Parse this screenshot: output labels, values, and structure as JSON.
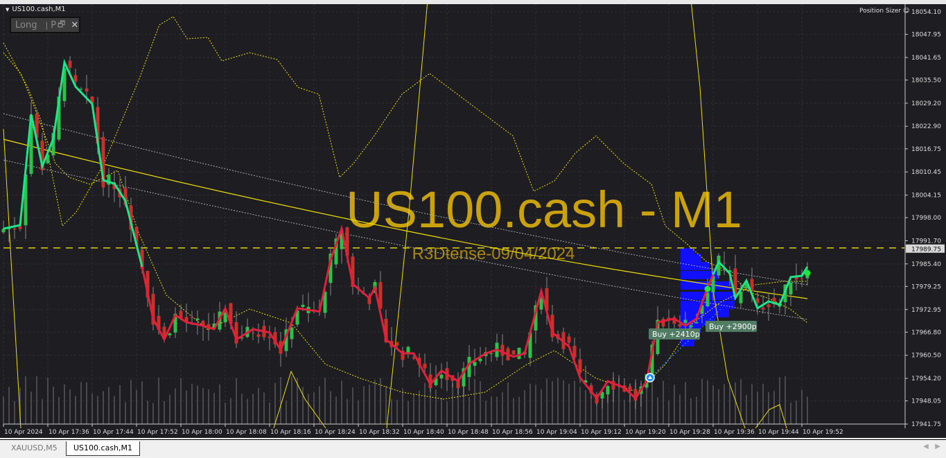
{
  "window": {
    "title": "US100.cash,M1",
    "trade_panel": {
      "direction": "Long",
      "separator": "|",
      "p_label": "P"
    },
    "position_sizer_label": "Position Sizer",
    "watermark_symbol": "US100.cash - M1",
    "watermark_author": "R3Dtense-09/04/2024"
  },
  "tabs": [
    {
      "label": "XAUUSD,M5",
      "active": false
    },
    {
      "label": "US100.cash,M1",
      "active": true
    }
  ],
  "colors": {
    "background": "#1e1e22",
    "bull_candle": "#2fbf4a",
    "bear_candle": "#c8302c",
    "trend_up": "#1de58a",
    "trend_down": "#e0203c",
    "bands": "#f0e000",
    "volume_profile": "#1010ff",
    "current_price_line": "#f0e000",
    "trade_label_bg": "#4f7c62"
  },
  "chart_data": {
    "type": "candlestick",
    "symbol": "US100.cash",
    "timeframe": "M1",
    "ylim": [
      17941.75,
      18054.1
    ],
    "y_ticks": [
      "18054.10",
      "18047.95",
      "18041.65",
      "18035.50",
      "18029.20",
      "18022.90",
      "18016.75",
      "18010.45",
      "18004.15",
      "17998.00",
      "17991.70",
      "17985.40",
      "17979.25",
      "17972.95",
      "17966.80",
      "17960.50",
      "17954.20",
      "17948.05",
      "17941.75"
    ],
    "current_price": "17989.75",
    "x_ticks": [
      "10 Apr 2024",
      "10 Apr 17:36",
      "10 Apr 17:44",
      "10 Apr 17:52",
      "10 Apr 18:00",
      "10 Apr 18:08",
      "10 Apr 18:16",
      "10 Apr 18:24",
      "10 Apr 18:32",
      "10 Apr 18:40",
      "10 Apr 18:48",
      "10 Apr 18:56",
      "10 Apr 19:04",
      "10 Apr 19:12",
      "10 Apr 19:20",
      "10 Apr 19:28",
      "10 Apr 19:36",
      "10 Apr 19:44",
      "10 Apr 19:52"
    ],
    "start_time": "17:28",
    "close_waypoints": [
      [
        "17:28",
        17995.0
      ],
      [
        "17:31",
        17995.95
      ],
      [
        "17:33",
        18026.15
      ],
      [
        "17:35",
        18012.0
      ],
      [
        "17:37",
        18019.55
      ],
      [
        "17:39",
        18040.3
      ],
      [
        "17:41",
        18033.7
      ],
      [
        "17:44",
        18029.0
      ],
      [
        "17:46",
        18008.2
      ],
      [
        "17:48",
        18007.3
      ],
      [
        "17:50",
        18002.55
      ],
      [
        "17:53",
        17984.6
      ],
      [
        "17:55",
        17970.45
      ],
      [
        "17:57",
        17964.8
      ],
      [
        "17:59",
        17971.4
      ],
      [
        "18:01",
        17969.5
      ],
      [
        "18:04",
        17968.55
      ],
      [
        "18:06",
        17967.6
      ],
      [
        "18:08",
        17973.3
      ],
      [
        "18:10",
        17964.8
      ],
      [
        "18:13",
        17967.6
      ],
      [
        "18:16",
        17966.7
      ],
      [
        "18:18",
        17962.0
      ],
      [
        "18:21",
        17973.3
      ],
      [
        "18:25",
        17972.4
      ],
      [
        "18:27",
        17986.5
      ],
      [
        "18:29",
        17995.0
      ],
      [
        "18:31",
        17979.9
      ],
      [
        "18:34",
        17976.1
      ],
      [
        "18:35",
        17978.95
      ],
      [
        "18:37",
        17964.8
      ],
      [
        "18:40",
        17961.0
      ],
      [
        "18:42",
        17961.0
      ],
      [
        "18:45",
        17952.55
      ],
      [
        "18:47",
        17956.3
      ],
      [
        "18:50",
        17953.45
      ],
      [
        "18:52",
        17958.2
      ],
      [
        "18:55",
        17961.0
      ],
      [
        "18:57",
        17962.0
      ],
      [
        "19:00",
        17960.1
      ],
      [
        "19:02",
        17961.0
      ],
      [
        "19:05",
        17978.0
      ],
      [
        "19:07",
        17966.7
      ],
      [
        "19:10",
        17962.9
      ],
      [
        "19:12",
        17954.4
      ],
      [
        "19:15",
        17948.75
      ],
      [
        "19:17",
        17953.45
      ],
      [
        "19:20",
        17951.6
      ],
      [
        "19:22",
        17948.75
      ],
      [
        "19:24",
        17953.45
      ],
      [
        "19:26",
        17969.5
      ],
      [
        "19:29",
        17970.45
      ],
      [
        "19:31",
        17968.55
      ],
      [
        "19:33",
        17970.45
      ],
      [
        "19:35",
        17978.95
      ],
      [
        "19:37",
        17985.95
      ],
      [
        "19:39",
        17982.75
      ],
      [
        "19:40",
        17976.1
      ],
      [
        "19:42",
        17980.85
      ],
      [
        "19:44",
        17973.3
      ],
      [
        "19:46",
        17975.2
      ],
      [
        "19:48",
        17974.25
      ],
      [
        "19:50",
        17981.8
      ],
      [
        "19:52",
        17982.15
      ],
      [
        "19:53",
        17984.6
      ]
    ],
    "trend_segments": [
      {
        "from": "17:28",
        "to": "17:53",
        "direction": "up"
      },
      {
        "from": "17:53",
        "to": "19:36",
        "direction": "down"
      },
      {
        "from": "19:36",
        "to": "19:53",
        "direction": "up"
      }
    ],
    "trades": [
      {
        "label": "Buy +2410p",
        "entry_time": "19:24",
        "entry_price": 17954.4
      },
      {
        "label": "Buy +2900p",
        "entry_time": "19:34",
        "entry_price": 17979.0
      }
    ]
  }
}
